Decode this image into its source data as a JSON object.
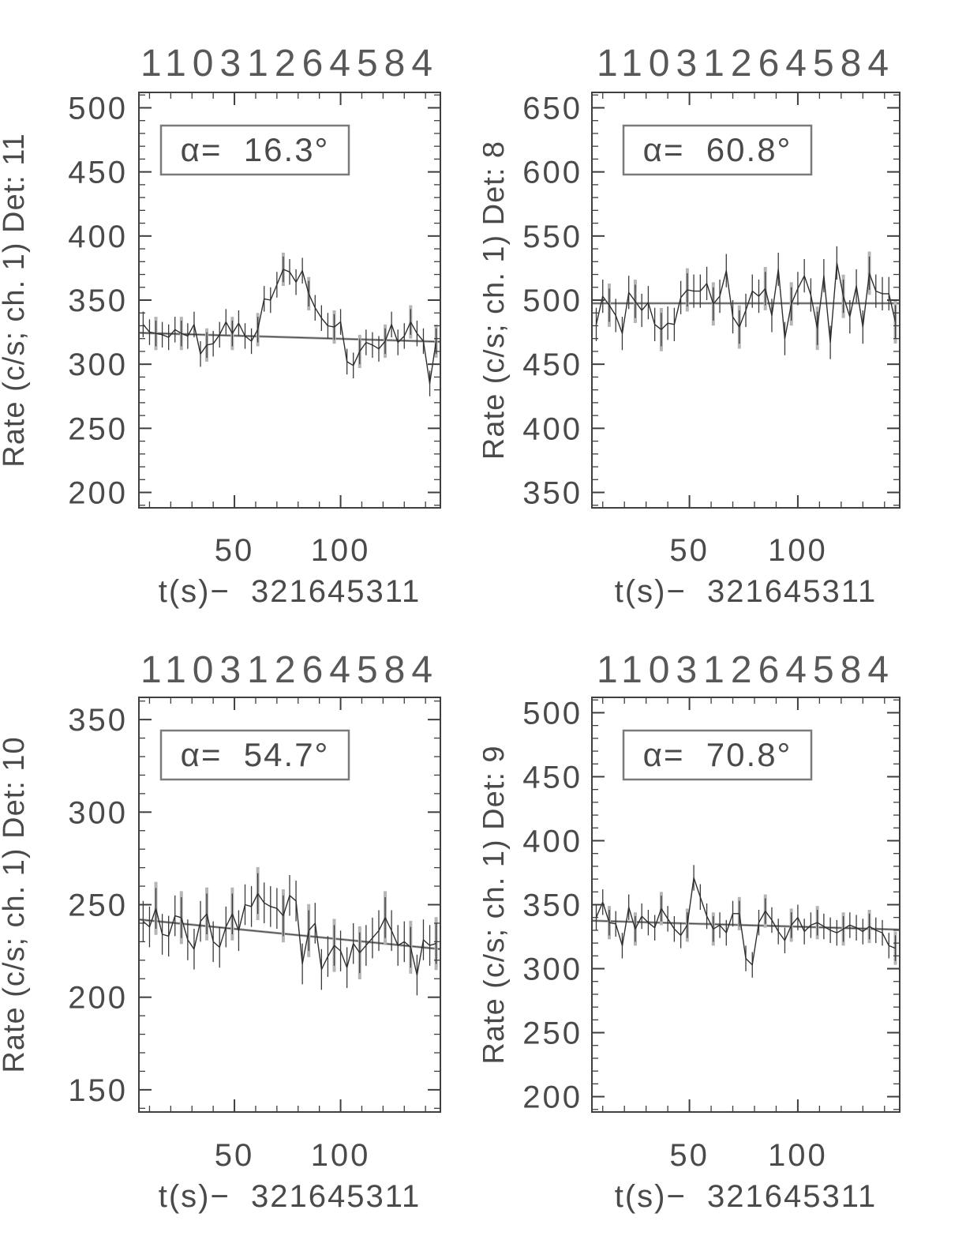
{
  "figure": {
    "title_repeated": "11031264584",
    "xlabel_repeated": "t(s)−  321645311",
    "x_tick_labels": [
      "50",
      "100"
    ]
  },
  "style_colors": {
    "background": "#ffffff",
    "axis": "#3f3f3f",
    "tick_text": "#4a4a4a",
    "title_text": "#585858",
    "data_line": "#2e2e2e",
    "error_bar": "#3a3a3a",
    "error_bar_gray": "#b5b5b5",
    "fit_line_gray": "#a8a8a8",
    "fit_line_dark": "#4a4a4a",
    "annotation_border": "#7a7a7a"
  },
  "chart_data": [
    {
      "type": "line",
      "title": "11031264584",
      "ylabel": "Rate (c/s; ch. 1) Det: 11",
      "xlabel": "t(s)−  321645311",
      "detector": 11,
      "alpha_label": "α=  16.3°",
      "alpha_deg": 16.3,
      "x_start": 7,
      "x_step": 3,
      "xlim": [
        5,
        147
      ],
      "ylim": [
        188,
        512
      ],
      "xticks": [
        50,
        100
      ],
      "yticks": [
        200,
        250,
        300,
        350,
        400,
        450,
        500
      ],
      "x_minor_step": 10,
      "y_minor_step": 10,
      "grid": false,
      "legend": null,
      "err": 10,
      "fit_line": {
        "y_start": 324.5,
        "y_end": 317.5
      },
      "values": [
        331,
        325,
        324,
        323,
        321,
        327,
        324,
        322,
        331,
        308,
        315,
        316,
        323,
        333,
        324,
        332,
        322,
        318,
        327,
        351,
        350,
        362,
        374,
        372,
        364,
        373,
        355,
        344,
        336,
        330,
        329,
        333,
        302,
        299,
        310,
        317,
        315,
        312,
        318,
        331,
        317,
        322,
        333,
        324,
        318,
        285,
        318
      ]
    },
    {
      "type": "line",
      "title": "11031264584",
      "ylabel": "Rate (c/s; ch. 1) Det: 8",
      "xlabel": "t(s)−  321645311",
      "detector": 8,
      "alpha_label": "α=  60.8°",
      "alpha_deg": 60.8,
      "x_start": 7,
      "x_step": 3,
      "xlim": [
        5,
        147
      ],
      "ylim": [
        338,
        662
      ],
      "xticks": [
        50,
        100
      ],
      "yticks": [
        350,
        400,
        450,
        500,
        550,
        600,
        650
      ],
      "x_minor_step": 10,
      "y_minor_step": 10,
      "grid": false,
      "legend": null,
      "err": 13,
      "fit_line": {
        "y_start": 497.5,
        "y_end": 497.5
      },
      "values": [
        481,
        503,
        496,
        488,
        474,
        506,
        499,
        492,
        498,
        481,
        477,
        482,
        481,
        502,
        508,
        507,
        507,
        513,
        497,
        503,
        523,
        487,
        479,
        492,
        507,
        503,
        509,
        488,
        524,
        470,
        497,
        509,
        519,
        504,
        478,
        519,
        467,
        529,
        503,
        487,
        511,
        479,
        521,
        507,
        505,
        505,
        483
      ]
    },
    {
      "type": "line",
      "title": "11031264584",
      "ylabel": "Rate (c/s; ch. 1) Det: 10",
      "xlabel": "t(s)−  321645311",
      "detector": 10,
      "alpha_label": "α=  54.7°",
      "alpha_deg": 54.7,
      "x_start": 7,
      "x_step": 3,
      "xlim": [
        5,
        147
      ],
      "ylim": [
        138,
        362
      ],
      "xticks": [
        50,
        100
      ],
      "yticks": [
        150,
        200,
        250,
        300,
        350
      ],
      "x_minor_step": 10,
      "y_minor_step": 10,
      "grid": false,
      "legend": null,
      "err": 11,
      "fit_line": {
        "y_start": 242,
        "y_end": 226
      },
      "values": [
        241,
        238,
        248,
        234,
        233,
        244,
        243,
        231,
        226,
        241,
        245,
        230,
        227,
        238,
        245,
        236,
        250,
        249,
        256,
        251,
        249,
        248,
        244,
        255,
        252,
        218,
        236,
        240,
        215,
        222,
        228,
        225,
        216,
        229,
        224,
        228,
        232,
        236,
        243,
        236,
        228,
        230,
        227,
        212,
        231,
        228,
        229
      ]
    },
    {
      "type": "line",
      "title": "11031264584",
      "ylabel": "Rate (c/s; ch. 1) Det: 9",
      "xlabel": "t(s)−  321645311",
      "detector": 9,
      "alpha_label": "α=  70.8°",
      "alpha_deg": 70.8,
      "x_start": 7,
      "x_step": 3,
      "xlim": [
        5,
        147
      ],
      "ylim": [
        188,
        512
      ],
      "xticks": [
        50,
        100
      ],
      "yticks": [
        200,
        250,
        300,
        350,
        400,
        450,
        500
      ],
      "x_minor_step": 10,
      "y_minor_step": 10,
      "grid": false,
      "legend": null,
      "err": 10,
      "fit_line": {
        "y_start": 337.5,
        "y_end": 330.5
      },
      "values": [
        340,
        352,
        336,
        335,
        318,
        348,
        331,
        341,
        336,
        332,
        347,
        339,
        331,
        326,
        334,
        371,
        356,
        341,
        331,
        334,
        328,
        343,
        343,
        308,
        303,
        336,
        345,
        338,
        329,
        322,
        334,
        340,
        329,
        334,
        336,
        333,
        330,
        328,
        331,
        334,
        332,
        329,
        333,
        330,
        328,
        318,
        316
      ]
    }
  ]
}
